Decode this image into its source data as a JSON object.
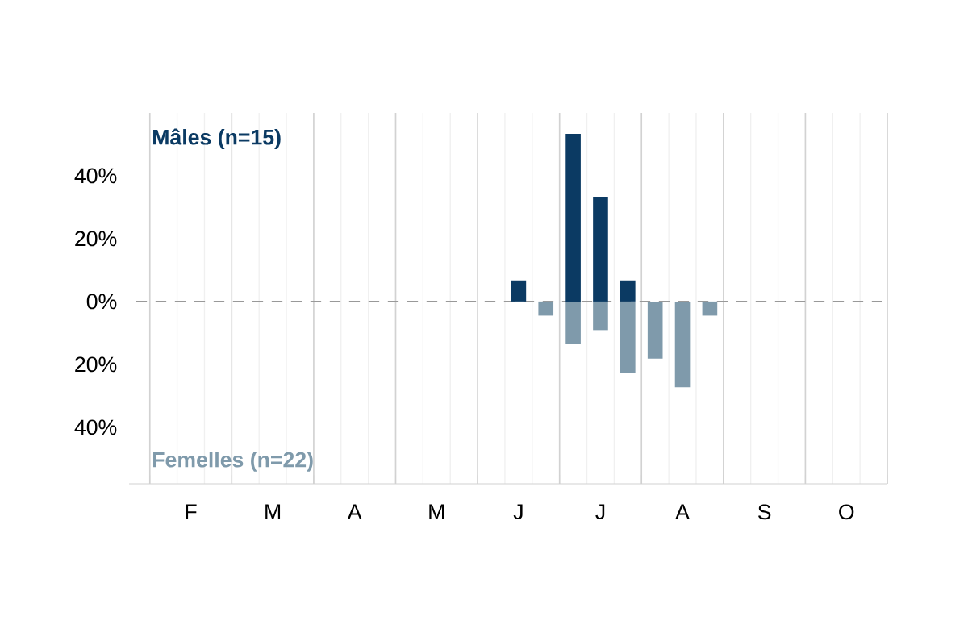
{
  "chart_data": {
    "type": "bar",
    "categories": [
      null,
      "F",
      null,
      null,
      "M",
      null,
      null,
      "A",
      null,
      null,
      "M",
      null,
      null,
      "J",
      null,
      null,
      "J",
      null,
      null,
      "A",
      null,
      null,
      "S",
      null,
      null,
      "O",
      null
    ],
    "series": [
      {
        "name": "Mâles (n=15)",
        "color": "#0b3a63",
        "values": [
          null,
          null,
          null,
          null,
          null,
          null,
          null,
          null,
          null,
          null,
          null,
          null,
          null,
          6.7,
          null,
          53.3,
          33.3,
          6.7,
          null,
          null,
          null,
          null,
          null,
          null,
          null,
          null,
          null
        ]
      },
      {
        "name": "Femelles (n=22)",
        "color": "#7f9aab",
        "values": [
          null,
          null,
          null,
          null,
          null,
          null,
          null,
          null,
          null,
          null,
          null,
          null,
          null,
          null,
          -4.5,
          -13.6,
          -9.1,
          -22.7,
          -18.2,
          -27.3,
          -4.5,
          null,
          null,
          null,
          null,
          null,
          null
        ]
      }
    ],
    "ylim": [
      -58,
      60
    ],
    "yticks": [
      {
        "value": -40,
        "label": "40%"
      },
      {
        "value": -20,
        "label": "20%"
      },
      {
        "value": 0,
        "label": "0%"
      },
      {
        "value": 20,
        "label": "20%"
      },
      {
        "value": 40,
        "label": "40%"
      }
    ],
    "ref_lines": [
      {
        "axis": "y",
        "value": 0,
        "line_style": "dashed",
        "color": "#999999"
      }
    ],
    "grid": "x"
  }
}
